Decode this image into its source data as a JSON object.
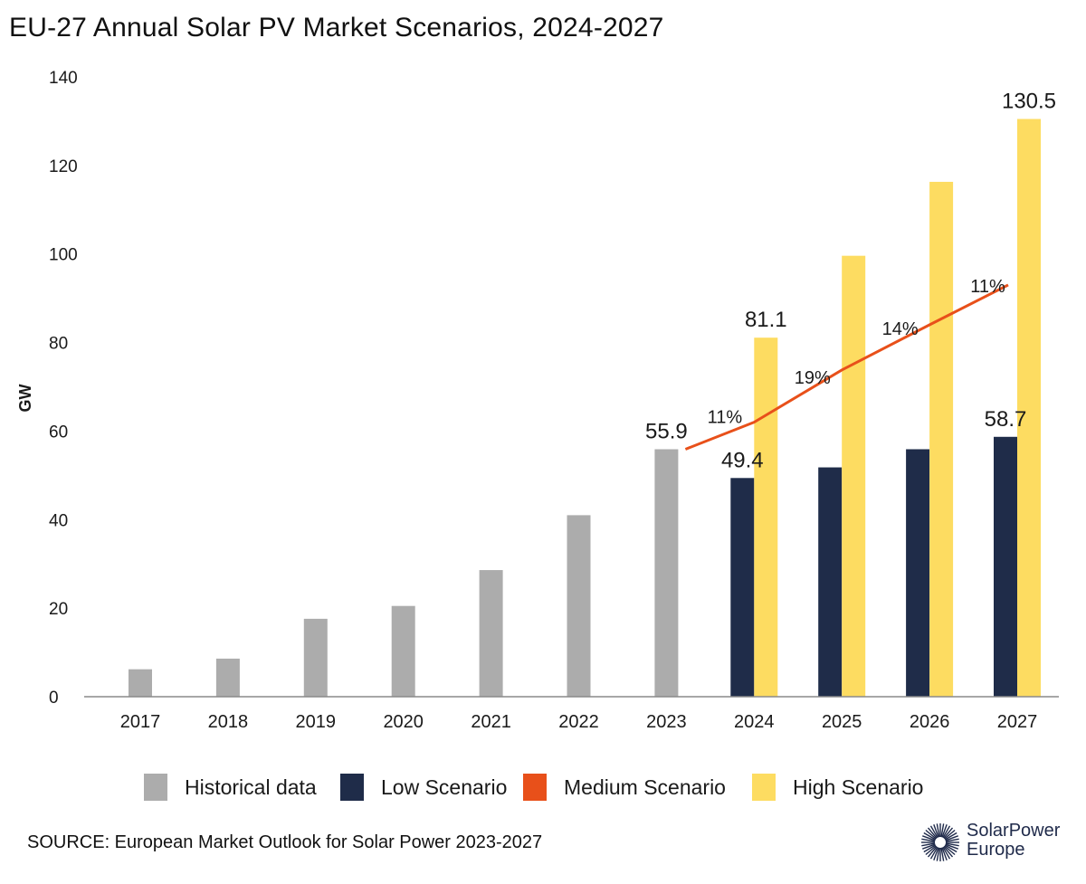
{
  "colors": {
    "historical": "#acacac",
    "low": "#1f2c49",
    "medium": "#e8501a",
    "high": "#fddc61",
    "axis": "#8a8a8a",
    "text": "#1a1a1a"
  },
  "chart_data": {
    "type": "bar",
    "title": "EU-27 Annual Solar PV Market Scenarios, 2024-2027",
    "xlabel": "",
    "ylabel": "GW",
    "ylim": [
      0,
      140
    ],
    "yticks": [
      0,
      20,
      40,
      60,
      80,
      100,
      120,
      140
    ],
    "grid": false,
    "legend_position": "bottom",
    "categories": [
      "2017",
      "2018",
      "2019",
      "2020",
      "2021",
      "2022",
      "2023",
      "2024",
      "2025",
      "2026",
      "2027"
    ],
    "series": [
      {
        "name": "Historical data",
        "kind": "bar",
        "color": "historical",
        "values": [
          6.2,
          8.6,
          17.6,
          20.5,
          28.6,
          41.0,
          55.9,
          null,
          null,
          null,
          null
        ]
      },
      {
        "name": "Low Scenario",
        "kind": "bar",
        "color": "low",
        "values": [
          null,
          null,
          null,
          null,
          null,
          null,
          null,
          49.4,
          51.8,
          55.9,
          58.7
        ]
      },
      {
        "name": "Medium Scenario",
        "kind": "line",
        "color": "medium",
        "values": [
          null,
          null,
          null,
          null,
          null,
          null,
          55.9,
          62.0,
          73.8,
          84.0,
          93.0
        ]
      },
      {
        "name": "High Scenario",
        "kind": "bar",
        "color": "high",
        "values": [
          null,
          null,
          null,
          null,
          null,
          null,
          null,
          81.1,
          99.6,
          116.3,
          130.5
        ]
      }
    ],
    "data_labels": [
      {
        "series": "Historical data",
        "category": "2023",
        "text": "55.9"
      },
      {
        "series": "Low Scenario",
        "category": "2024",
        "text": "49.4"
      },
      {
        "series": "Low Scenario",
        "category": "2027",
        "text": "58.7"
      },
      {
        "series": "High Scenario",
        "category": "2024",
        "text": "81.1"
      },
      {
        "series": "High Scenario",
        "category": "2027",
        "text": "130.5"
      }
    ],
    "growth_labels": [
      {
        "category": "2024",
        "text": "11%"
      },
      {
        "category": "2025",
        "text": "19%"
      },
      {
        "category": "2026",
        "text": "14%"
      },
      {
        "category": "2027",
        "text": "11%"
      }
    ]
  },
  "source": "SOURCE: European Market Outlook for Solar Power 2023-2027",
  "brand": {
    "line1": "SolarPower",
    "line2": "Europe",
    "icon": "sunburst-logo-icon"
  }
}
